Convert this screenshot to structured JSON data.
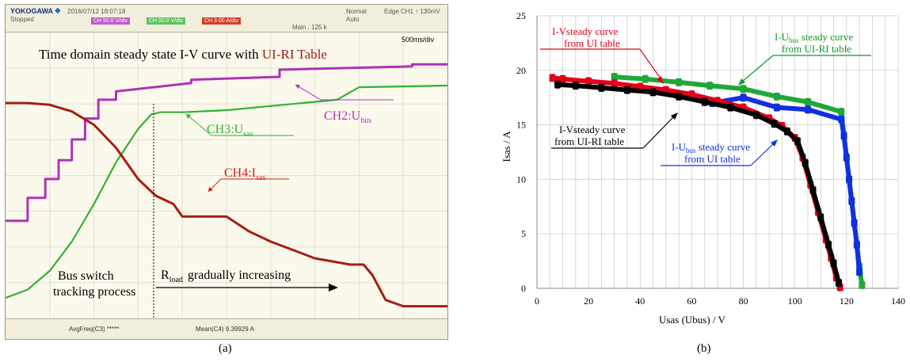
{
  "panel_a": {
    "brand": "YOKOGAWA",
    "datetime": "2016/07/12 18:07:18",
    "state": "Stopped",
    "trigger": "Edge CH1 ↑ 130mV",
    "mode_top": "Normal",
    "mode_bottom": "Auto",
    "channel_tags": [
      "CH 50.0 V/div",
      "CH 50.0 V/div",
      "CH 3.00 A/div"
    ],
    "main_rate": "Main : 125 k",
    "timebase": "500ms/div",
    "title_prefix": "Time domain steady state I-V curve with ",
    "title_highlight": "UI-RI Table",
    "labels": {
      "ch2": "CH2:U",
      "ch2_sub": "bus",
      "ch3": "CH3:U",
      "ch3_sub": "sas",
      "ch4": "CH4:I",
      "ch4_sub": "sas",
      "bus_switch_1": "Bus switch",
      "bus_switch_2": "tracking process",
      "rload": "R",
      "rload_sub": "load",
      "rload_rest": "gradually increasing"
    },
    "bottom_left": "AvgFreq(C3)   *****",
    "bottom_right": "Mean(C4)   9.39929 A",
    "colors": {
      "ch2": "#b032b8",
      "ch3": "#33b035",
      "ch4": "#a81c12",
      "title_highlight": "#9b1b12"
    },
    "caption": "(a)"
  },
  "panel_b": {
    "caption": "(b)",
    "annotations": {
      "red_1": "I-Vsteady curve",
      "red_2": "from UI table",
      "green_1a": "I-U",
      "green_1sub": "bus",
      "green_1b": " steady curve",
      "green_2": "from UI-RI table",
      "black_1": "I-Vsteady curve",
      "black_2": "from UI-RI table",
      "blue_1a": "I-U",
      "blue_1sub": "bus",
      "blue_1b": " steady curve",
      "blue_2": "from UI table"
    },
    "colors": {
      "red": "#e3001b",
      "green": "#109a2c",
      "black": "#000000",
      "blue": "#1030e0"
    }
  },
  "chart_data": [
    {
      "type": "line",
      "xlabel": "",
      "ylabel": "",
      "time_division": "500ms/div",
      "series": [
        {
          "name": "CH2:Ubus",
          "x": [
            0,
            0.5,
            0.5,
            0.9,
            0.9,
            1.2,
            1.2,
            1.5,
            1.5,
            1.8,
            1.8,
            2.1,
            2.1,
            2.5,
            2.5,
            4.2,
            4.2,
            6.2,
            6.2,
            9.2,
            9.2,
            10
          ],
          "values": [
            2.0,
            2.0,
            2.55,
            2.55,
            3.0,
            3.0,
            3.45,
            3.45,
            3.95,
            3.95,
            4.45,
            4.45,
            4.9,
            4.9,
            5.1,
            5.3,
            5.38,
            5.45,
            5.62,
            5.7,
            5.75,
            5.75
          ]
        },
        {
          "name": "CH3:Usas",
          "x": [
            0,
            0.5,
            1.0,
            1.5,
            2.0,
            2.5,
            3.0,
            3.3,
            3.5,
            4.0,
            5.0,
            6.0,
            7.0,
            7.5,
            8.0,
            9.0,
            10
          ],
          "values": [
            0.15,
            0.35,
            0.8,
            1.5,
            2.4,
            3.4,
            4.2,
            4.55,
            4.6,
            4.6,
            4.65,
            4.75,
            4.85,
            4.9,
            5.2,
            5.22,
            5.24
          ]
        },
        {
          "name": "CH4:Isas",
          "x": [
            0,
            0.5,
            1.0,
            1.5,
            2.0,
            2.5,
            3.0,
            3.4,
            3.8,
            4.0,
            5.0,
            5.5,
            6.0,
            7.0,
            7.8,
            8.1,
            8.3,
            8.6,
            9.0,
            10
          ],
          "values": [
            4.82,
            4.82,
            4.78,
            4.62,
            4.3,
            3.75,
            3.0,
            2.6,
            2.4,
            2.1,
            2.1,
            1.75,
            1.5,
            1.1,
            0.95,
            0.95,
            0.7,
            0.1,
            -0.05,
            -0.05
          ]
        }
      ]
    },
    {
      "type": "scatter",
      "xlabel": "Usas (Ubus) / V",
      "ylabel": "Isas / A",
      "xlim": [
        0,
        140
      ],
      "ylim": [
        0,
        25
      ],
      "xticks": [
        0,
        20,
        40,
        60,
        80,
        100,
        120,
        140
      ],
      "yticks": [
        0,
        5,
        10,
        15,
        20,
        25
      ],
      "grid": true,
      "series": [
        {
          "name": "I-Vsteady curve from UI table",
          "color": "#e3001b",
          "x": [
            6,
            10,
            20,
            30,
            40,
            50,
            60,
            70,
            80,
            90,
            95,
            100,
            103,
            106,
            109,
            112,
            114,
            116,
            117.5
          ],
          "values": [
            19.3,
            19.2,
            19.0,
            18.8,
            18.5,
            18.2,
            17.8,
            17.2,
            16.6,
            15.6,
            14.9,
            13.8,
            12.0,
            9.5,
            7.0,
            4.5,
            2.8,
            1.0,
            0.1
          ]
        },
        {
          "name": "I-Vsteady curve from UI-RI table",
          "color": "#000000",
          "x": [
            8,
            15,
            25,
            35,
            45,
            55,
            65,
            75,
            85,
            92,
            97,
            101,
            104,
            107,
            110,
            113,
            115,
            117
          ],
          "values": [
            18.7,
            18.6,
            18.4,
            18.2,
            18.0,
            17.6,
            17.1,
            16.6,
            15.9,
            15.1,
            14.4,
            13.5,
            11.5,
            9.0,
            6.5,
            4.0,
            2.3,
            0.5
          ]
        },
        {
          "name": "I-Ubus steady curve from UI-RI table",
          "color": "#1ea838",
          "x": [
            30,
            42,
            55,
            67,
            80,
            93,
            105,
            118,
            119,
            120,
            121,
            122,
            123,
            124,
            125,
            126
          ],
          "values": [
            19.4,
            19.2,
            18.9,
            18.6,
            18.3,
            17.6,
            17.1,
            16.2,
            14.0,
            12.0,
            10.0,
            8.0,
            6.0,
            4.0,
            2.0,
            0.3
          ]
        },
        {
          "name": "I-Ubus steady curve from UI table",
          "color": "#1030e0",
          "x": [
            68,
            80,
            93,
            105,
            118,
            119,
            120,
            121,
            122,
            123,
            124,
            125
          ],
          "values": [
            17.0,
            17.5,
            16.6,
            16.4,
            15.5,
            14.0,
            12.0,
            10.0,
            8.0,
            6.0,
            4.0,
            1.5
          ]
        }
      ]
    }
  ]
}
